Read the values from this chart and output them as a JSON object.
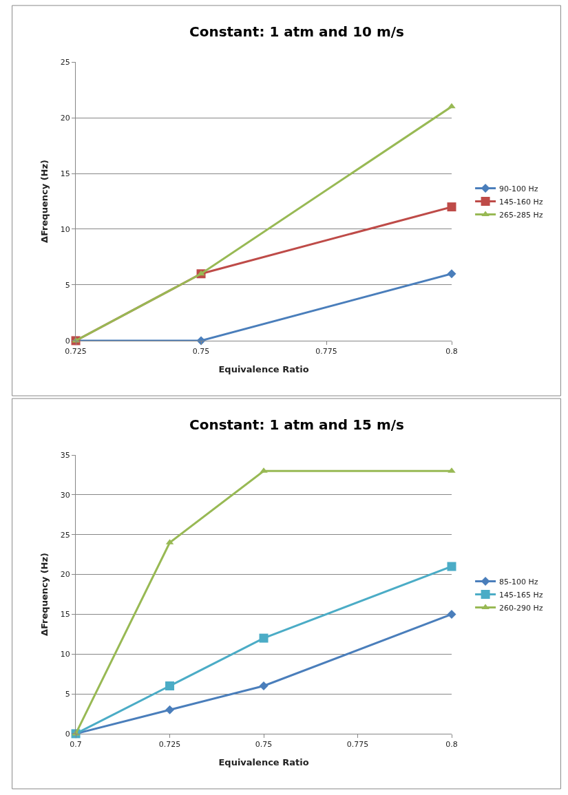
{
  "chart_data": [
    {
      "type": "line",
      "title": "Constant: 1 atm and 10 m/s",
      "xlabel": "Equivalence Ratio",
      "ylabel": "ΔFrequency (Hz)",
      "x": [
        0.725,
        0.75,
        0.8
      ],
      "xlim": [
        0.725,
        0.8
      ],
      "xticks": [
        0.725,
        0.75,
        0.775,
        0.8
      ],
      "ylim": [
        0,
        25
      ],
      "yticks": [
        0,
        5,
        10,
        15,
        20,
        25
      ],
      "grid": "y",
      "legend": "right",
      "series": [
        {
          "name": "90-100 Hz",
          "color": "#4a7ebb",
          "marker": "diamond",
          "values": [
            0,
            0,
            6
          ]
        },
        {
          "name": "145-160 Hz",
          "color": "#be4b48",
          "marker": "square",
          "values": [
            0,
            6,
            12
          ]
        },
        {
          "name": "265-285 Hz",
          "color": "#98b954",
          "marker": "triangle",
          "values": [
            0,
            6,
            21
          ]
        }
      ]
    },
    {
      "type": "line",
      "title": "Constant: 1 atm and 15 m/s",
      "xlabel": "Equivalence Ratio",
      "ylabel": "ΔFrequency (Hz)",
      "x": [
        0.7,
        0.725,
        0.75,
        0.8
      ],
      "xlim": [
        0.7,
        0.8
      ],
      "xticks": [
        0.7,
        0.725,
        0.75,
        0.775,
        0.8
      ],
      "ylim": [
        0,
        35
      ],
      "yticks": [
        0,
        5,
        10,
        15,
        20,
        25,
        30,
        35
      ],
      "grid": "y",
      "legend": "right",
      "series": [
        {
          "name": "85-100 Hz",
          "color": "#4a7ebb",
          "marker": "diamond",
          "values": [
            0,
            3,
            6,
            15
          ]
        },
        {
          "name": "145-165 Hz",
          "color": "#4bacc6",
          "marker": "square",
          "values": [
            0,
            6,
            12,
            21
          ]
        },
        {
          "name": "260-290 Hz",
          "color": "#98b954",
          "marker": "triangle",
          "values": [
            0,
            24,
            33,
            33
          ]
        }
      ]
    }
  ]
}
